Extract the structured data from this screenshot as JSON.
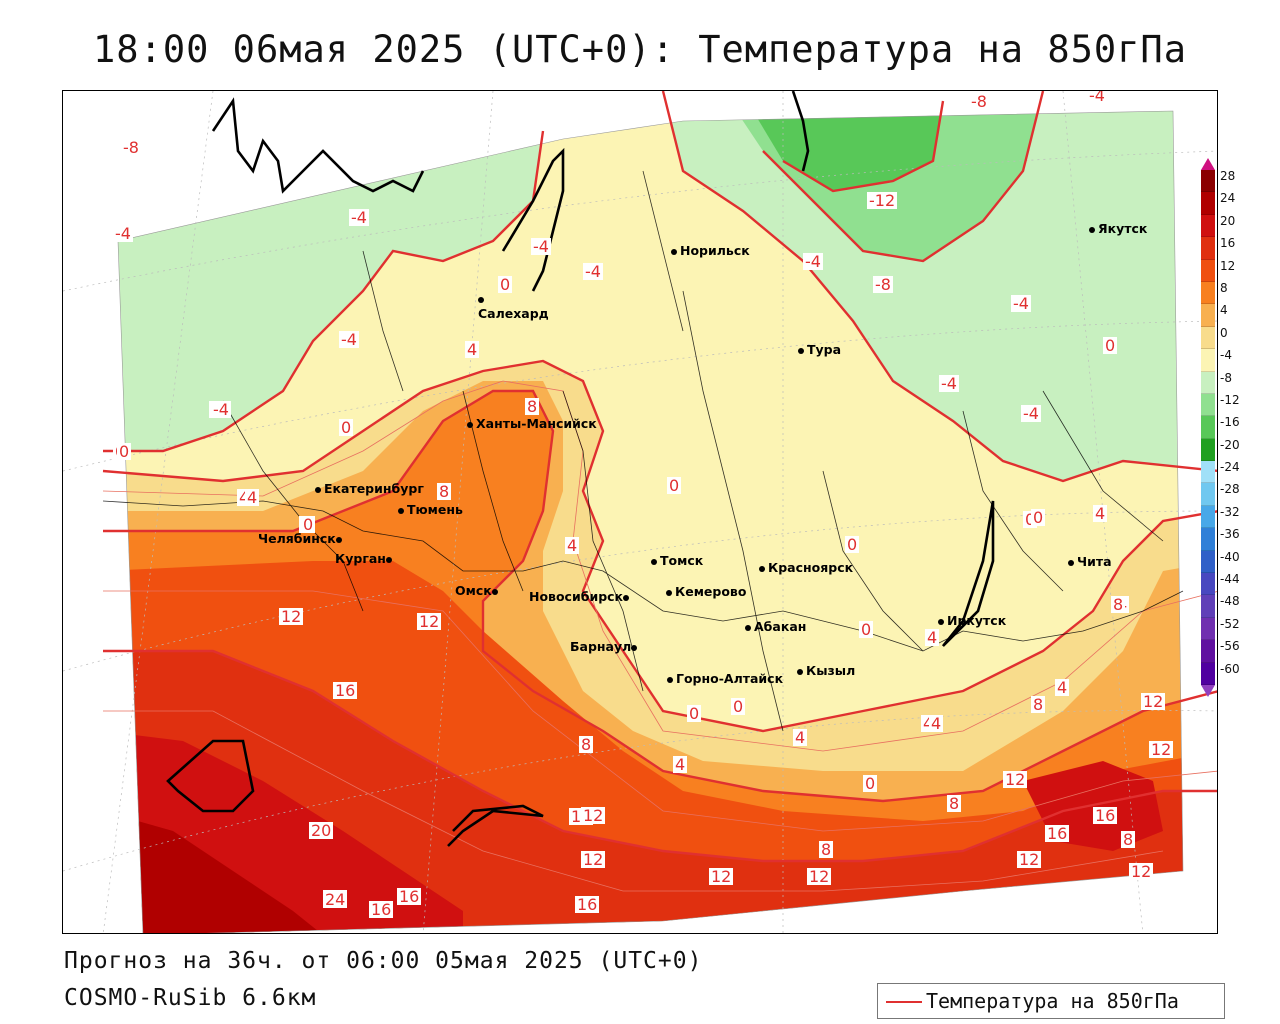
{
  "title": "18:00 06мая 2025 (UTC+0): Температура на 850гПа",
  "forecast_line": "Прогноз на 36ч. от 06:00 05мая 2025 (UTC+0)",
  "model_line": "COSMO-RuSib 6.6км",
  "legend": {
    "label": "Температура на 850гПа",
    "line_color": "#e03030"
  },
  "colorbar": {
    "labels": [
      "28",
      "24",
      "20",
      "16",
      "12",
      "8",
      "4",
      "0",
      "-4",
      "-8",
      "-12",
      "-16",
      "-20",
      "-24",
      "-28",
      "-32",
      "-36",
      "-40",
      "-44",
      "-48",
      "-52",
      "-56",
      "-60"
    ],
    "colors": [
      "#8b0000",
      "#b00000",
      "#d01010",
      "#e03010",
      "#f05010",
      "#f88020",
      "#f8b050",
      "#f8dc8c",
      "#fcf4b4",
      "#c8f0c0",
      "#90e090",
      "#58c858",
      "#20a020",
      "#a0e0f8",
      "#70c8f0",
      "#48a8e8",
      "#3080d8",
      "#3060c8",
      "#4848c0",
      "#6040b8",
      "#7030b0",
      "#6010a0",
      "#5000a0"
    ],
    "top_arrow_color": "#d01080",
    "bottom_arrow_color": "#9040c0"
  },
  "cities": [
    {
      "name": "Норильск"
    },
    {
      "name": "Якутск"
    },
    {
      "name": "Салехард"
    },
    {
      "name": "Тура"
    },
    {
      "name": "Ханты-Мансийск"
    },
    {
      "name": "Екатеринбург"
    },
    {
      "name": "Тюмень"
    },
    {
      "name": "Челябинск"
    },
    {
      "name": "Курган"
    },
    {
      "name": "Омск"
    },
    {
      "name": "Новосибирск"
    },
    {
      "name": "Томск"
    },
    {
      "name": "Красноярск"
    },
    {
      "name": "Кемерово"
    },
    {
      "name": "Абакан"
    },
    {
      "name": "Барнаул"
    },
    {
      "name": "Иркутск"
    },
    {
      "name": "Чита"
    },
    {
      "name": "Горно-Алтайск"
    },
    {
      "name": "Кызыл"
    }
  ],
  "contour_labels": [
    "-8",
    "-8",
    "-4",
    "-4",
    "-4",
    "-12",
    "-8",
    "-4",
    "-4",
    "0",
    "-4",
    "-4",
    "-4",
    "-4",
    "-4",
    "-4",
    "0",
    "4",
    "0",
    "8",
    "4",
    "8",
    "0",
    "0",
    "4",
    "0",
    "4",
    "8",
    "4",
    "12",
    "12",
    "16",
    "8",
    "12",
    "4",
    "0",
    "0",
    "4",
    "4",
    "8",
    "4",
    "12",
    "0",
    "8",
    "12",
    "16",
    "16",
    "12",
    "20",
    "12",
    "12",
    "12",
    "8",
    "12",
    "16",
    "20",
    "24",
    "16",
    "16",
    "12",
    "8",
    "12",
    "-4",
    "0",
    "0",
    "0",
    "4",
    "4",
    "0",
    "0",
    "8",
    "4"
  ]
}
